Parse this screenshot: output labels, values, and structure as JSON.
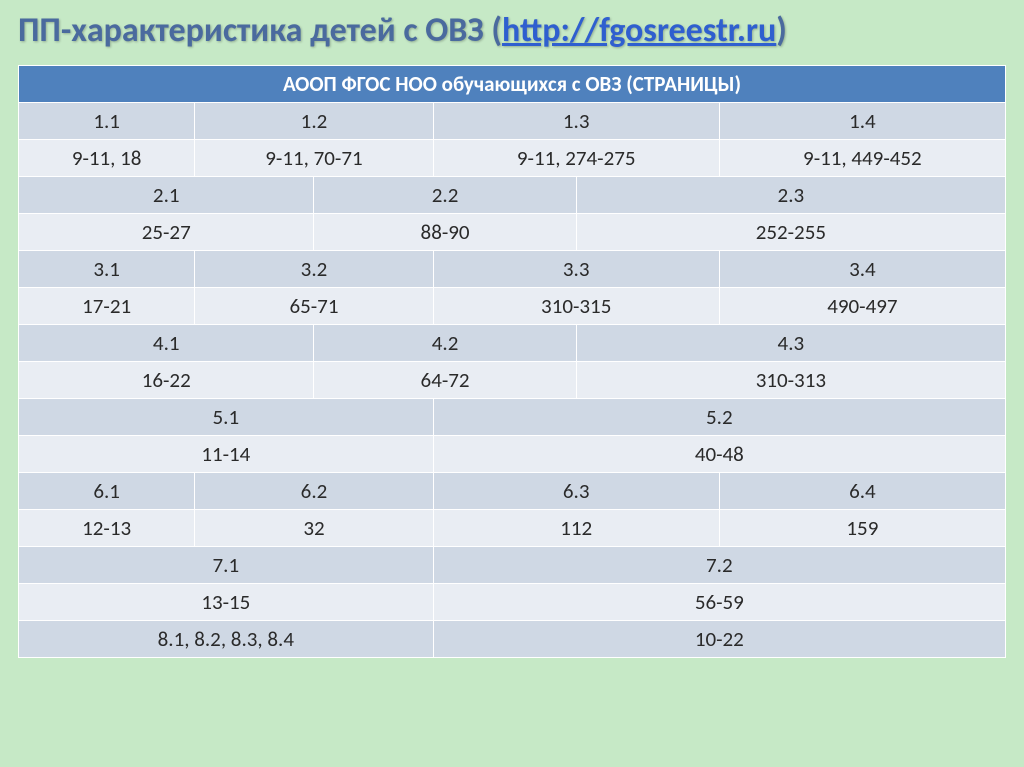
{
  "title_prefix": "ПП-характеристика детей с ОВЗ   ",
  "title_paren_open": "(",
  "title_link": "http://fgosreestr.ru",
  "title_paren_close": ")",
  "header": "АООП ФГОС НОО обучающихся с ОВЗ (СТРАНИЦЫ)",
  "rows": {
    "r1": [
      "1.1",
      "1.2",
      "1.3",
      "1.4"
    ],
    "r2": [
      "9-11, 18",
      "9-11,  70-71",
      "9-11, 274-275",
      "9-11, 449-452"
    ],
    "r3": [
      "2.1",
      "2.2",
      "2.3"
    ],
    "r4": [
      "25-27",
      "88-90",
      "252-255"
    ],
    "r5": [
      "3.1",
      "3.2",
      "3.3",
      "3.4"
    ],
    "r6": [
      "17-21",
      "65-71",
      "310-315",
      "490-497"
    ],
    "r7": [
      "4.1",
      "4.2",
      "4.3"
    ],
    "r8": [
      "16-22",
      "64-72",
      "310-313"
    ],
    "r9": [
      "5.1",
      "5.2"
    ],
    "r10": [
      "11-14",
      "40-48"
    ],
    "r11": [
      "6.1",
      "6.2",
      "6.3",
      "6.4"
    ],
    "r12": [
      "12-13",
      "32",
      "112",
      "159"
    ],
    "r13": [
      "7.1",
      "7.2"
    ],
    "r14": [
      "13-15",
      "56-59"
    ],
    "r15": [
      "8.1, 8.2, 8.3, 8.4",
      "10-22"
    ]
  },
  "colors": {
    "background": "#c6e9c6",
    "header_bg": "#4f81bd",
    "header_fg": "#ffffff",
    "shade_bg": "#cfd8e4",
    "plain_bg": "#e9edf3",
    "border": "#ffffff",
    "title_color": "#4a6a9e",
    "link_color": "#2f5fcf"
  }
}
